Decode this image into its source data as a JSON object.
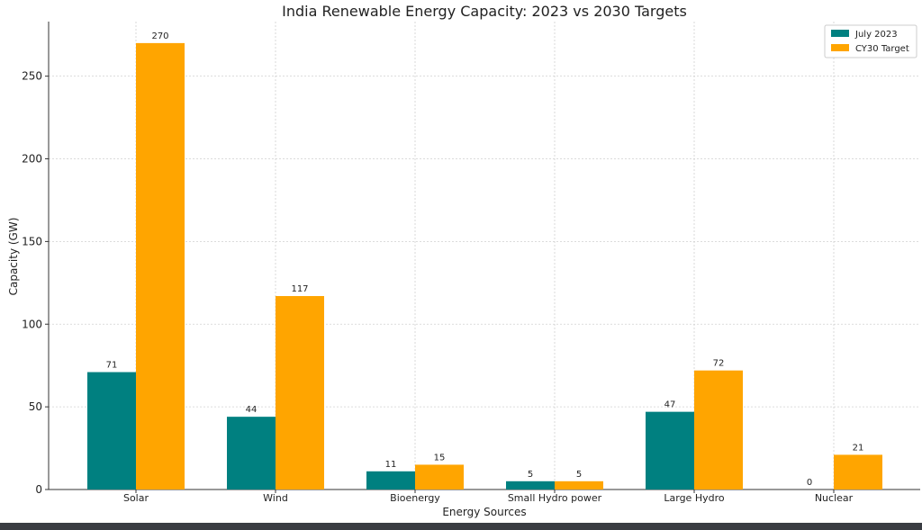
{
  "chart_data": {
    "type": "bar",
    "title": "India Renewable Energy Capacity: 2023 vs 2030 Targets",
    "xlabel": "Energy Sources",
    "ylabel": "Capacity (GW)",
    "categories": [
      "Solar",
      "Wind",
      "Bioenergy",
      "Small Hydro power",
      "Large Hydro",
      "Nuclear"
    ],
    "series": [
      {
        "name": "July 2023",
        "color": "#008080",
        "values": [
          71,
          44,
          11,
          5,
          47,
          0
        ]
      },
      {
        "name": "CY30 Target",
        "color": "#FFA500",
        "values": [
          270,
          117,
          15,
          5,
          72,
          21
        ]
      }
    ],
    "ylim": [
      0,
      283
    ],
    "yticks": [
      0,
      50,
      100,
      150,
      200,
      250
    ],
    "grid": true,
    "legend_position": "top-right"
  }
}
